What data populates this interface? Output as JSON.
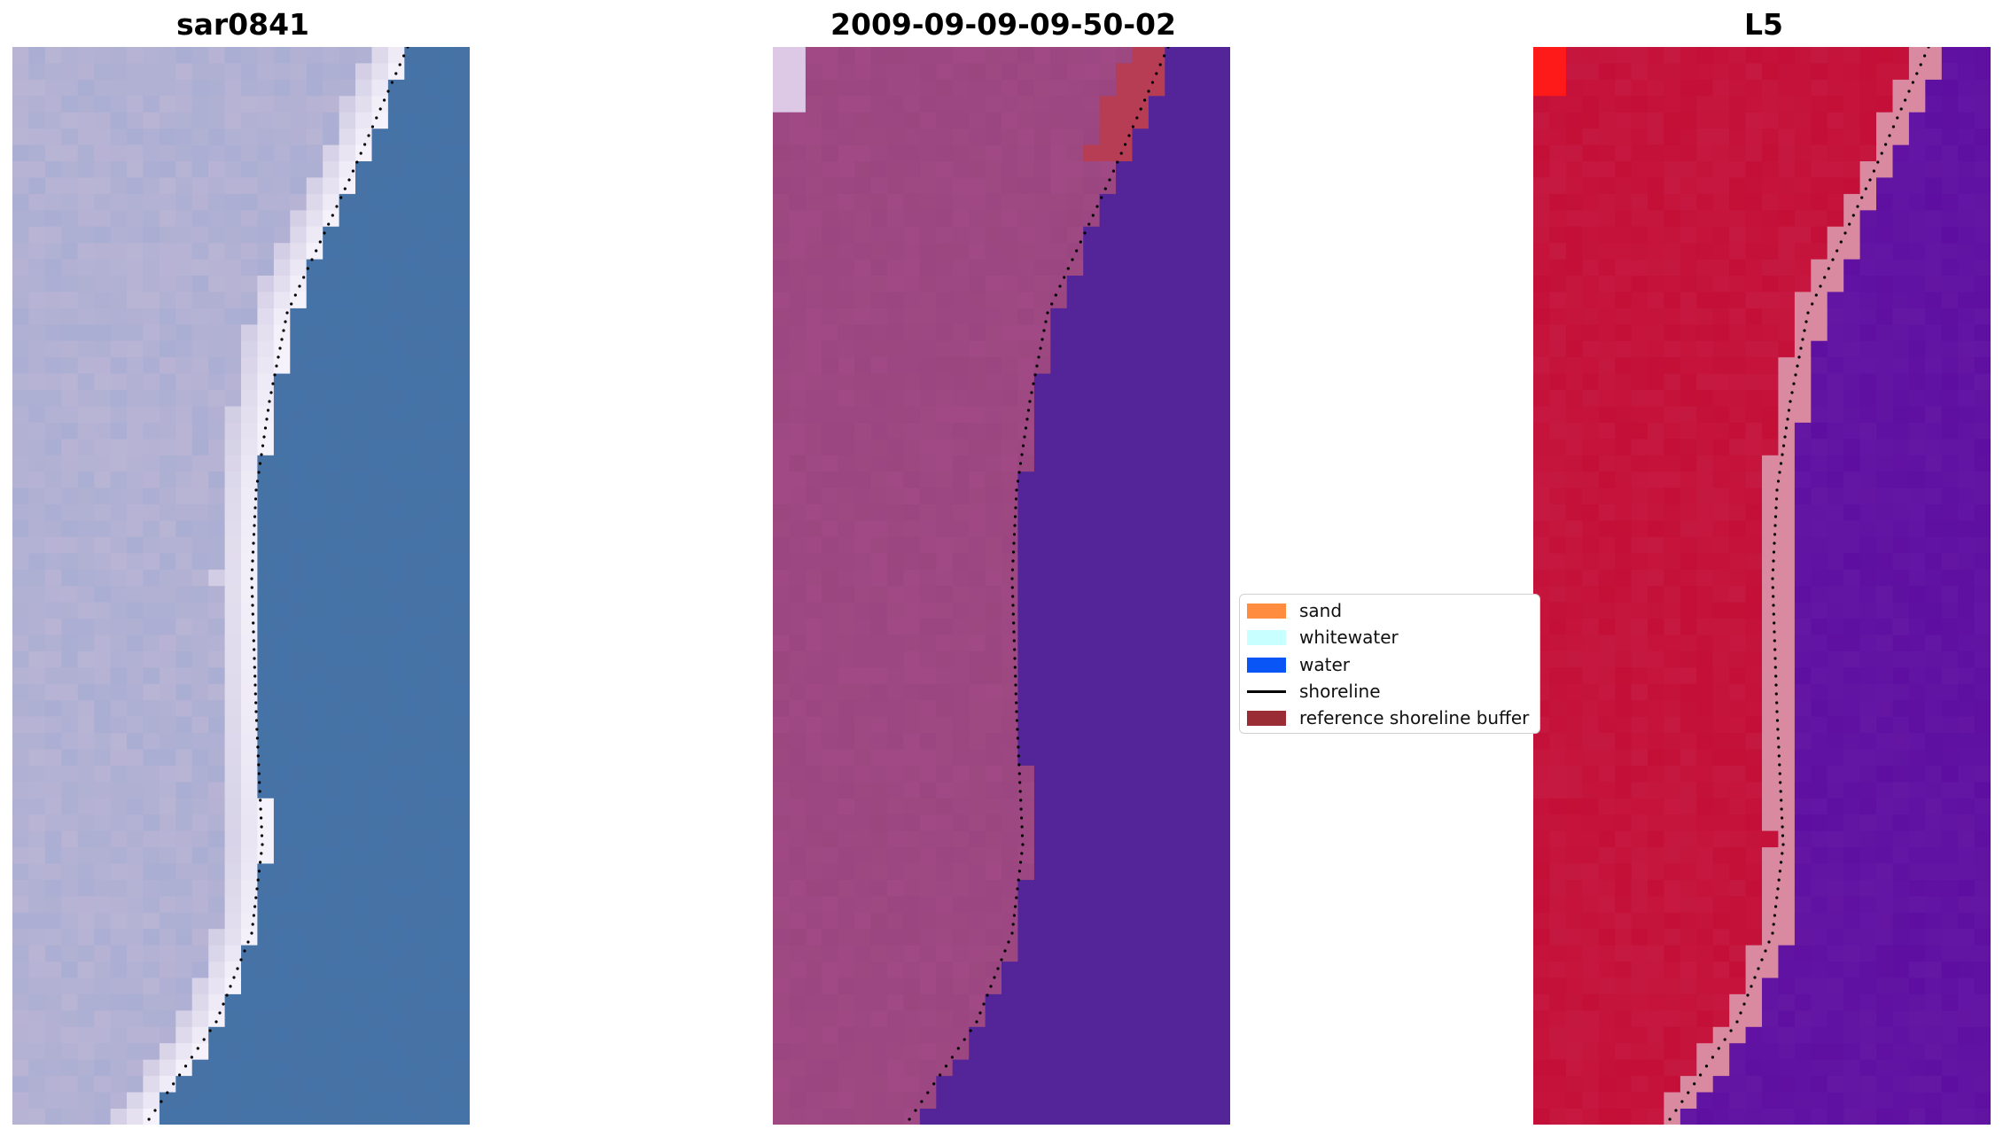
{
  "panels": [
    {
      "title": "sar0841",
      "style": "rgb",
      "sand": "#b9b4d4",
      "water": "#4672a6",
      "white": "#f6f2fb"
    },
    {
      "title": "2009-09-09-09-50-02",
      "style": "classified",
      "sand": "#9b4680",
      "water": "#542599",
      "white": "#ddc8e6",
      "buffer": "#b63d54"
    },
    {
      "title": "L5",
      "style": "index",
      "sand": "#c40f37",
      "water": "#6417a3",
      "white": "#d98aa0",
      "bright": "#ff1a1a"
    }
  ],
  "legend": {
    "items": [
      {
        "label": "sand",
        "kind": "patch",
        "color": "#ff8c3f"
      },
      {
        "label": "whitewater",
        "kind": "patch",
        "color": "#c8ffff"
      },
      {
        "label": "water",
        "kind": "patch",
        "color": "#0a55f5"
      },
      {
        "label": "shoreline",
        "kind": "line",
        "color": "#000000"
      },
      {
        "label": "reference shoreline buffer",
        "kind": "patch",
        "color": "#9a2c35"
      }
    ]
  }
}
